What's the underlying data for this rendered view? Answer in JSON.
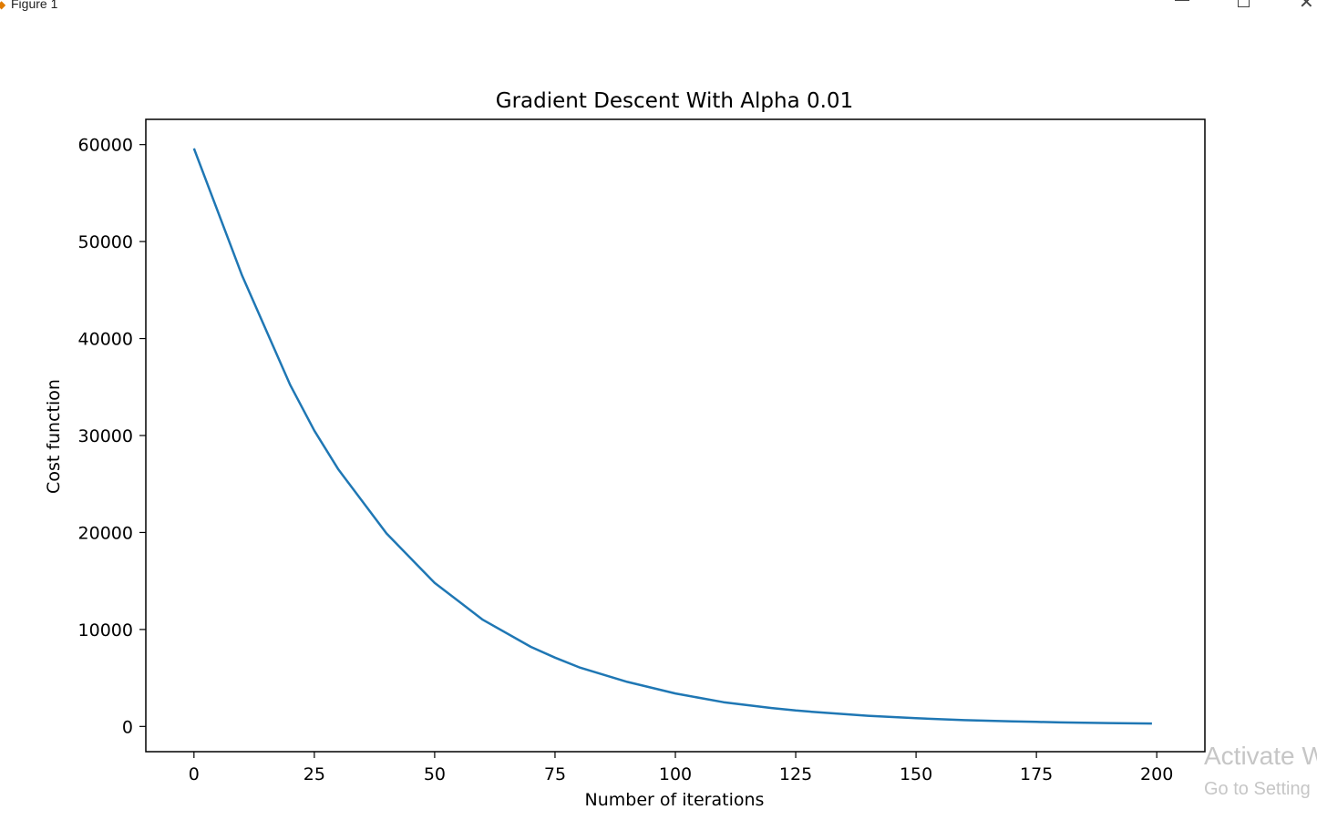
{
  "window": {
    "title": "Figure 1",
    "icon": "matplotlib-icon",
    "controls": [
      "minimize-icon",
      "maximize-icon",
      "close-icon"
    ],
    "close_glyph": "✕"
  },
  "watermark": {
    "line1": "Activate W",
    "line2": "Go to Setting"
  },
  "chart_data": {
    "type": "line",
    "title": "Gradient Descent With Alpha 0.01",
    "xlabel": "Number of iterations",
    "ylabel": "Cost function",
    "xlim": [
      -10,
      210
    ],
    "ylim": [
      -2600,
      62600
    ],
    "xticks": [
      0,
      25,
      50,
      75,
      100,
      125,
      150,
      175,
      200
    ],
    "yticks": [
      0,
      10000,
      20000,
      30000,
      40000,
      50000,
      60000
    ],
    "grid": false,
    "legend": "none",
    "series": [
      {
        "color": "#1f77b4",
        "x": [
          0,
          10,
          20,
          25,
          30,
          40,
          50,
          60,
          70,
          75,
          80,
          90,
          100,
          110,
          120,
          125,
          130,
          140,
          150,
          160,
          170,
          175,
          180,
          190,
          199
        ],
        "y": [
          59600,
          46500,
          35200,
          30500,
          26500,
          19900,
          14800,
          11000,
          8200,
          7100,
          6100,
          4600,
          3400,
          2500,
          1900,
          1650,
          1450,
          1100,
          850,
          650,
          520,
          470,
          420,
          350,
          300
        ]
      }
    ]
  }
}
